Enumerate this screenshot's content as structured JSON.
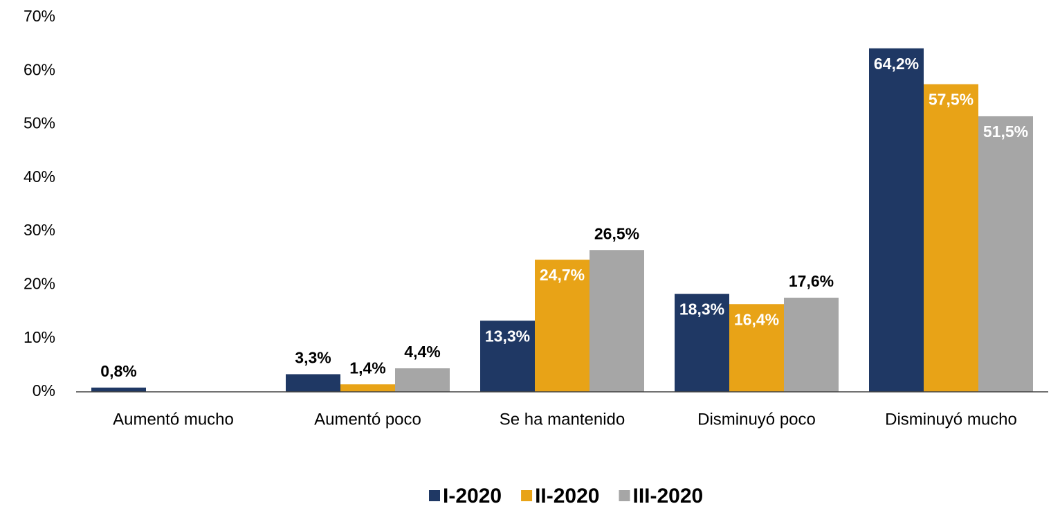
{
  "chart_data": {
    "type": "bar",
    "categories": [
      "Aumentó mucho",
      "Aumentó poco",
      "Se ha mantenido",
      "Disminuyó poco",
      "Disminuyó mucho"
    ],
    "series": [
      {
        "name": "I-2020",
        "color": "#1f3864",
        "values": [
          0.8,
          3.3,
          13.3,
          18.3,
          64.2
        ],
        "value_labels": [
          "0,8%",
          "3,3%",
          "13,3%",
          "18,3%",
          "64,2%"
        ]
      },
      {
        "name": "II-2020",
        "color": "#e8a317",
        "values": [
          null,
          1.4,
          24.7,
          16.4,
          57.5
        ],
        "value_labels": [
          null,
          "1,4%",
          "24,7%",
          "16,4%",
          "57,5%"
        ]
      },
      {
        "name": "III-2020",
        "color": "#a6a6a6",
        "values": [
          null,
          4.4,
          26.5,
          17.6,
          51.5
        ],
        "value_labels": [
          null,
          "4,4%",
          "26,5%",
          "17,6%",
          "51,5%"
        ]
      }
    ],
    "ylim": [
      0,
      70
    ],
    "yticks": [
      {
        "value": 0,
        "label": "0%"
      },
      {
        "value": 10,
        "label": "10%"
      },
      {
        "value": 20,
        "label": "20%"
      },
      {
        "value": 30,
        "label": "30%"
      },
      {
        "value": 40,
        "label": "40%"
      },
      {
        "value": 50,
        "label": "50%"
      },
      {
        "value": 60,
        "label": "60%"
      },
      {
        "value": 70,
        "label": "70%"
      }
    ],
    "grid": false,
    "legend": "bottom"
  }
}
